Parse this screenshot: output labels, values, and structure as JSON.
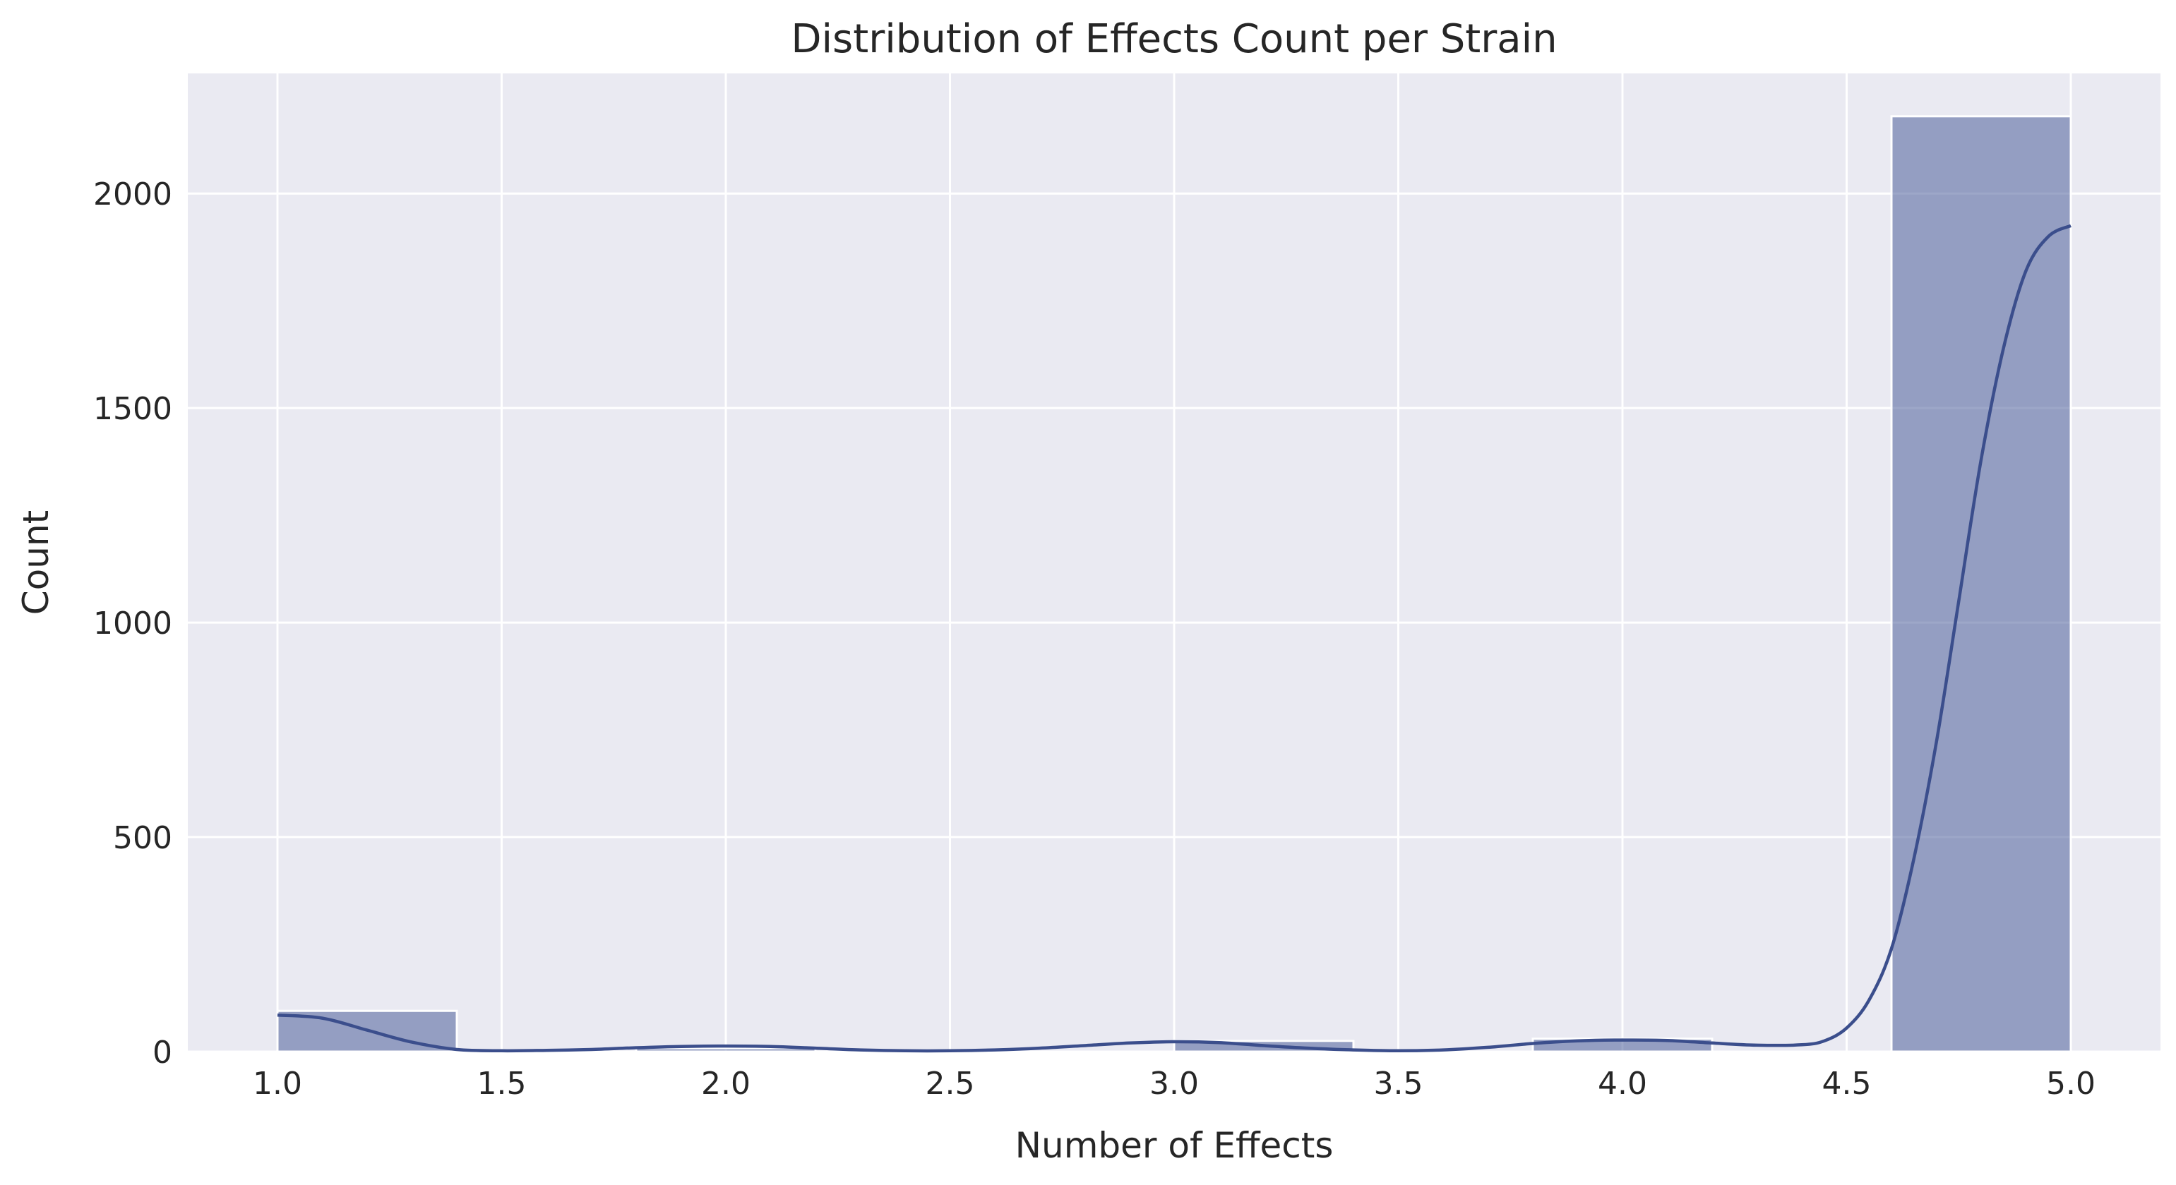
{
  "chart_data": {
    "type": "histogram",
    "title": "Distribution of Effects Count per Strain",
    "xlabel": "Number of Effects",
    "ylabel": "Count",
    "xlim": [
      0.8,
      5.2
    ],
    "ylim": [
      0,
      2280
    ],
    "xticks": [
      1.0,
      1.5,
      2.0,
      2.5,
      3.0,
      3.5,
      4.0,
      4.5,
      5.0
    ],
    "xtick_labels": [
      "1.0",
      "1.5",
      "2.0",
      "2.5",
      "3.0",
      "3.5",
      "4.0",
      "4.5",
      "5.0"
    ],
    "yticks": [
      0,
      500,
      1000,
      1500,
      2000
    ],
    "ytick_labels": [
      "0",
      "500",
      "1000",
      "1500",
      "2000"
    ],
    "grid": true,
    "bins": [
      {
        "x0": 1.0,
        "x1": 1.4,
        "count": 95
      },
      {
        "x0": 1.4,
        "x1": 1.8,
        "count": 0
      },
      {
        "x0": 1.8,
        "x1": 2.2,
        "count": 8
      },
      {
        "x0": 2.2,
        "x1": 2.6,
        "count": 0
      },
      {
        "x0": 2.6,
        "x1": 3.0,
        "count": 0
      },
      {
        "x0": 3.0,
        "x1": 3.4,
        "count": 25
      },
      {
        "x0": 3.4,
        "x1": 3.8,
        "count": 0
      },
      {
        "x0": 3.8,
        "x1": 4.2,
        "count": 30
      },
      {
        "x0": 4.2,
        "x1": 4.6,
        "count": 0
      },
      {
        "x0": 4.6,
        "x1": 5.0,
        "count": 2180
      }
    ],
    "kde": {
      "x": [
        1.0,
        1.1,
        1.2,
        1.3,
        1.4,
        1.5,
        1.6,
        1.7,
        1.8,
        1.9,
        2.0,
        2.1,
        2.2,
        2.3,
        2.4,
        2.5,
        2.6,
        2.7,
        2.8,
        2.9,
        3.0,
        3.1,
        3.2,
        3.3,
        3.4,
        3.5,
        3.6,
        3.7,
        3.8,
        3.9,
        4.0,
        4.1,
        4.2,
        4.3,
        4.4,
        4.45,
        4.5,
        4.55,
        4.6,
        4.65,
        4.7,
        4.75,
        4.8,
        4.85,
        4.9,
        4.95,
        5.0
      ],
      "y": [
        85,
        78,
        50,
        22,
        5,
        2,
        3,
        5,
        9,
        12,
        13,
        12,
        8,
        4,
        2,
        2,
        4,
        8,
        14,
        20,
        23,
        21,
        14,
        8,
        4,
        2,
        4,
        10,
        19,
        25,
        27,
        26,
        20,
        15,
        16,
        25,
        55,
        120,
        240,
        450,
        720,
        1050,
        1380,
        1640,
        1820,
        1900,
        1925
      ]
    },
    "colors": {
      "background": "#eaeaf2",
      "grid": "#ffffff",
      "bar_fill": "#4c5f9a",
      "bar_opacity": 0.55,
      "bar_edge": "#ffffff",
      "kde_line": "#3b4e8c"
    }
  }
}
